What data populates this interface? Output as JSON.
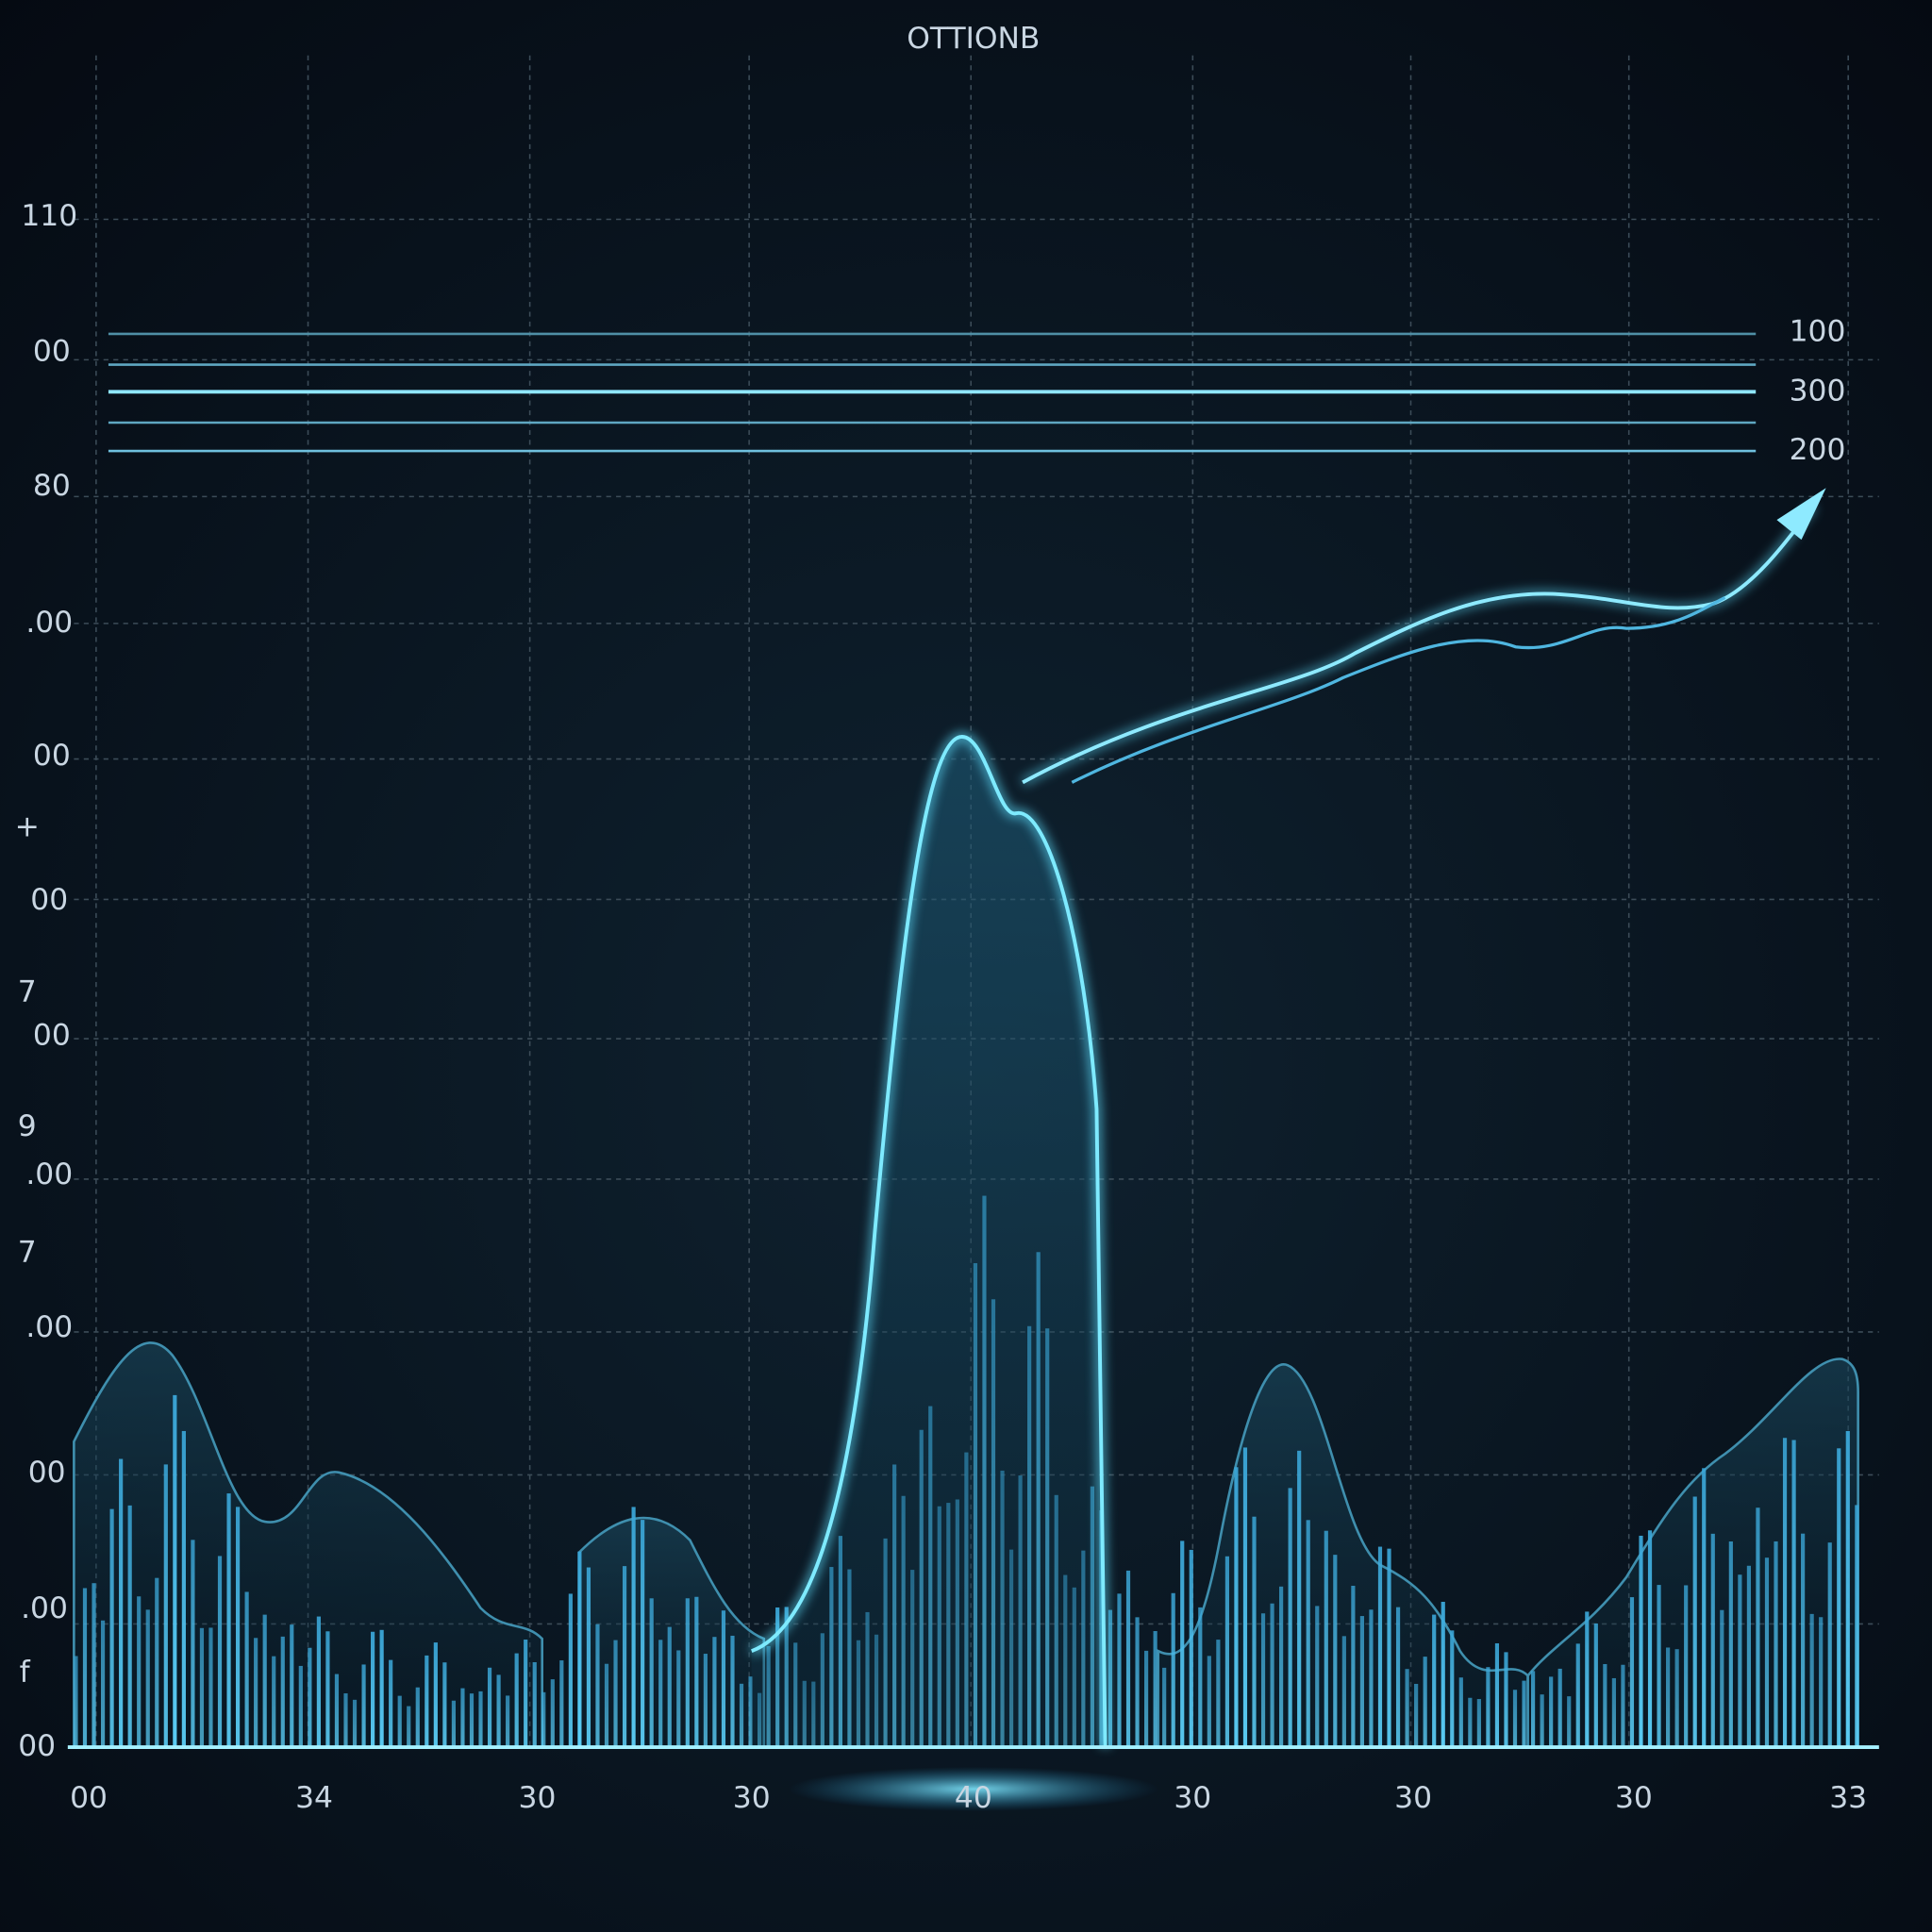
{
  "title": "OTTIONB",
  "y_axis_labels": [
    "110",
    "00",
    "80",
    ".00",
    "00",
    "+",
    "00",
    "7",
    "00",
    "9",
    ".00",
    "7",
    ".00",
    "00",
    ".00",
    "f",
    "00"
  ],
  "right_labels": [
    "100",
    "300",
    "200"
  ],
  "x_axis_labels": [
    "00",
    "34",
    "30",
    "30",
    "40",
    "30",
    "30",
    "30",
    "33"
  ]
}
